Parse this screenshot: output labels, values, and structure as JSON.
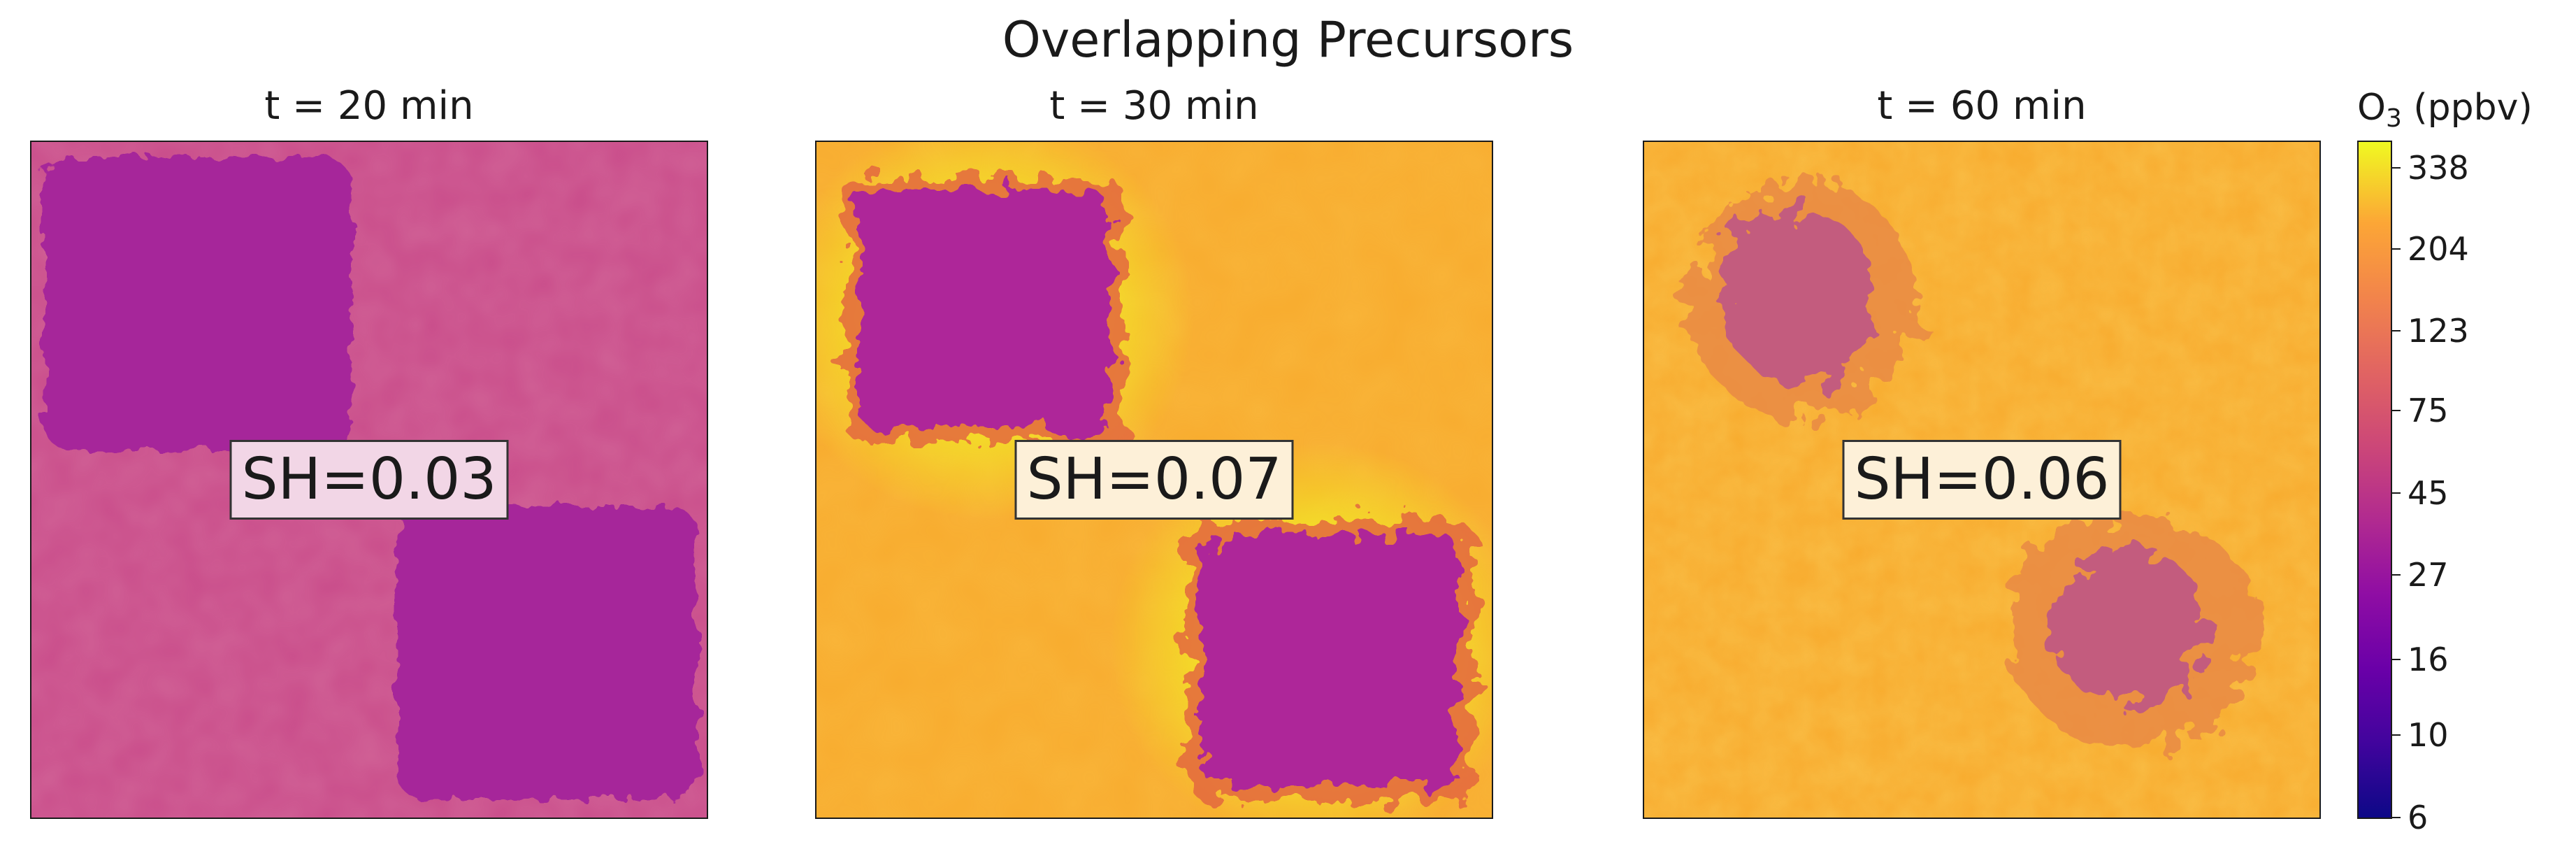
{
  "chart_data": {
    "type": "heatmap",
    "title": "Overlapping Precursors",
    "panels": [
      {
        "title": "t = 20 min",
        "annotation": "SH=0.03",
        "SH": 0.03,
        "background_ppbv": 58,
        "patch_ppbv": 36,
        "annotation_bg": "#f2d6e6"
      },
      {
        "title": "t = 30 min",
        "annotation": "SH=0.07",
        "SH": 0.07,
        "background_ppbv": 175,
        "patch_ppbv": 36,
        "annotation_bg": "#fdf0d8"
      },
      {
        "title": "t = 60 min",
        "annotation": "SH=0.06",
        "SH": 0.06,
        "background_ppbv": 200,
        "patch_ppbv": 80,
        "annotation_bg": "#fdf0d8"
      }
    ],
    "colorbar": {
      "label": "O",
      "label_sub": "3",
      "label_unit": " (ppbv)",
      "scale": "log",
      "range": [
        6,
        400
      ],
      "ticks": [
        6,
        10,
        16,
        27,
        45,
        75,
        123,
        204,
        338
      ],
      "colormap": "plasma"
    },
    "grid": false,
    "colors": {
      "panel1_bg": "#c94c8a",
      "panel1_patch": "#a6279a",
      "panel23_bg": "#f8ab2e",
      "panel23_patch": "#ae2799",
      "panel3_patch": "#c35b7e"
    }
  }
}
